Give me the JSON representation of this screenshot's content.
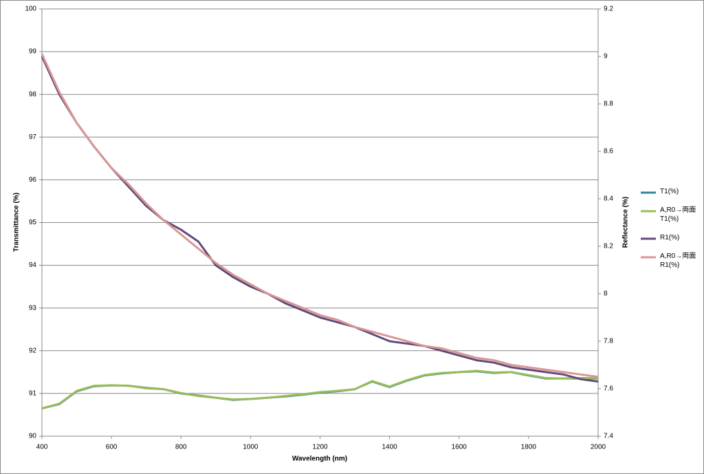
{
  "chart_data": {
    "type": "line",
    "xlabel": "Wavelength (nm)",
    "ylabel": "Transmittance (%)",
    "y2label": "Reflectance (%)",
    "x": [
      400,
      450,
      500,
      550,
      600,
      650,
      700,
      750,
      800,
      850,
      900,
      950,
      1000,
      1050,
      1100,
      1150,
      1200,
      1250,
      1300,
      1350,
      1400,
      1450,
      1500,
      1550,
      1600,
      1650,
      1700,
      1750,
      1800,
      1850,
      1900,
      1950,
      2000
    ],
    "xlim": [
      400,
      2000
    ],
    "xticks": [
      400,
      600,
      800,
      1000,
      1200,
      1400,
      1600,
      1800,
      2000
    ],
    "ylim": [
      90,
      100
    ],
    "yticks": [
      90,
      91,
      92,
      93,
      94,
      95,
      96,
      97,
      98,
      99,
      100
    ],
    "y2lim": [
      7.4,
      9.2
    ],
    "y2ticks": [
      7.4,
      7.6,
      7.8,
      8,
      8.2,
      8.4,
      8.6,
      8.8,
      9,
      9.2
    ],
    "grid": true,
    "legend": "right",
    "series": [
      {
        "name": "T1(%)",
        "color": "#31859c",
        "values": [
          90.65,
          90.75,
          91.05,
          91.17,
          91.19,
          91.18,
          91.13,
          91.1,
          91.0,
          90.95,
          90.9,
          90.85,
          90.87,
          90.9,
          90.93,
          90.97,
          91.02,
          91.05,
          91.1,
          91.28,
          91.15,
          91.3,
          91.42,
          91.47,
          91.5,
          91.52,
          91.48,
          91.5,
          91.42,
          91.35,
          91.35,
          91.35,
          91.35
        ]
      },
      {
        "name": "A,R0→両面T1(%)",
        "color": "#9bbb59",
        "values": [
          90.65,
          90.76,
          91.06,
          91.18,
          91.19,
          91.18,
          91.12,
          91.1,
          91.01,
          90.94,
          90.9,
          90.86,
          90.87,
          90.9,
          90.94,
          90.98,
          91.03,
          91.06,
          91.1,
          91.29,
          91.16,
          91.31,
          91.43,
          91.48,
          91.5,
          91.53,
          91.49,
          91.5,
          91.43,
          91.36,
          91.35,
          91.36,
          91.36
        ]
      },
      {
        "name": "R1(%)",
        "color": "#604a7b",
        "axis": "y2",
        "values": [
          9.0,
          8.84,
          8.72,
          8.62,
          8.53,
          8.45,
          8.37,
          8.31,
          8.27,
          8.22,
          8.12,
          8.07,
          8.03,
          8.0,
          7.96,
          7.93,
          7.9,
          7.88,
          7.86,
          7.83,
          7.8,
          7.79,
          7.78,
          7.76,
          7.74,
          7.72,
          7.71,
          7.69,
          7.68,
          7.67,
          7.66,
          7.64,
          7.63
        ]
      },
      {
        "name": "A,R0→両面R1(%)",
        "color": "#d99694",
        "axis": "y2",
        "values": [
          9.01,
          8.85,
          8.72,
          8.62,
          8.53,
          8.46,
          8.38,
          8.31,
          8.25,
          8.19,
          8.13,
          8.08,
          8.04,
          8.0,
          7.97,
          7.94,
          7.91,
          7.89,
          7.86,
          7.84,
          7.82,
          7.8,
          7.78,
          7.77,
          7.75,
          7.73,
          7.72,
          7.7,
          7.69,
          7.68,
          7.67,
          7.66,
          7.65
        ]
      }
    ]
  }
}
